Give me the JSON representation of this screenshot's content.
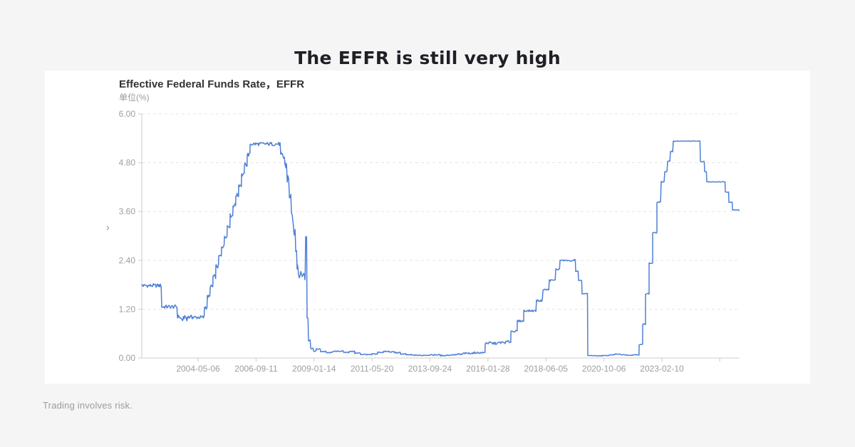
{
  "page": {
    "title": "The EFFR is still very high",
    "footer": "Trading involves risk.",
    "background_color": "#f5f5f6",
    "title_color": "#1e2025",
    "footer_color": "#9b9b9b"
  },
  "panel": {
    "collapse_icon": "›"
  },
  "chart_data": {
    "type": "line",
    "title": "Effective Federal Funds Rate，EFFR",
    "unit_label": "单位(%)",
    "grid": "dashed",
    "legend_position": "none",
    "line_color": "#4f80d5",
    "axis_color": "#cccccc",
    "grid_color": "#e5e5e5",
    "tick_label_color": "#9e9e9e",
    "ylim": [
      0,
      6
    ],
    "y_axis": {
      "labels": [
        "6.00",
        "4.80",
        "3.60",
        "2.40",
        "1.20",
        "0.00"
      ],
      "values": [
        6,
        4.8,
        3.6,
        2.4,
        1.2,
        0
      ]
    },
    "x_axis": {
      "labels": [
        "2004-05-06",
        "2006-09-11",
        "2009-01-14",
        "2011-05-20",
        "2013-09-24",
        "2016-01-28",
        "2018-06-05",
        "2020-10-06",
        "2023-02-10"
      ],
      "first_frac": 0.0943,
      "step_frac": 0.0971,
      "extra_tick_frac": 0.9679
    },
    "series": [
      {
        "name": "EFFR",
        "points": [
          [
            0.0012,
            1.78
          ],
          [
            0.0334,
            1.26
          ],
          [
            0.0597,
            1.02
          ],
          [
            0.0644,
            0.97
          ],
          [
            0.068,
            0.88
          ],
          [
            0.0692,
            1.0
          ],
          [
            0.0752,
            0.92
          ],
          [
            0.0764,
            1.01
          ],
          [
            0.0847,
            1.0
          ],
          [
            0.105,
            1.25
          ],
          [
            0.1098,
            1.5
          ],
          [
            0.1146,
            1.75
          ],
          [
            0.1193,
            2.0
          ],
          [
            0.1241,
            2.25
          ],
          [
            0.1289,
            2.5
          ],
          [
            0.1337,
            2.75
          ],
          [
            0.1384,
            3.0
          ],
          [
            0.1432,
            3.25
          ],
          [
            0.148,
            3.5
          ],
          [
            0.1528,
            3.75
          ],
          [
            0.1575,
            4.0
          ],
          [
            0.1623,
            4.25
          ],
          [
            0.1671,
            4.5
          ],
          [
            0.1718,
            4.75
          ],
          [
            0.1766,
            5.0
          ],
          [
            0.1814,
            5.26
          ],
          [
            0.2327,
            4.94
          ],
          [
            0.2399,
            4.75
          ],
          [
            0.2434,
            4.4
          ],
          [
            0.247,
            4.0
          ],
          [
            0.2506,
            3.45
          ],
          [
            0.2542,
            3.1
          ],
          [
            0.2578,
            2.7
          ],
          [
            0.2601,
            2.3
          ],
          [
            0.2625,
            2.05
          ],
          [
            0.2733,
            1.98
          ],
          [
            0.2745,
            2.98
          ],
          [
            0.2769,
            1.0
          ],
          [
            0.2792,
            0.45
          ],
          [
            0.2828,
            0.24
          ],
          [
            0.2876,
            0.17
          ],
          [
            0.2924,
            0.22
          ],
          [
            0.2995,
            0.16
          ],
          [
            0.3091,
            0.13
          ],
          [
            0.3186,
            0.16
          ],
          [
            0.3282,
            0.17
          ],
          [
            0.3377,
            0.14
          ],
          [
            0.3473,
            0.16
          ],
          [
            0.3568,
            0.12
          ],
          [
            0.3664,
            0.09
          ],
          [
            0.3759,
            0.08
          ],
          [
            0.3855,
            0.1
          ],
          [
            0.395,
            0.14
          ],
          [
            0.4046,
            0.16
          ],
          [
            0.4141,
            0.15
          ],
          [
            0.4237,
            0.13
          ],
          [
            0.4332,
            0.1
          ],
          [
            0.4427,
            0.08
          ],
          [
            0.4523,
            0.07
          ],
          [
            0.4618,
            0.065
          ],
          [
            0.4714,
            0.07
          ],
          [
            0.4809,
            0.075
          ],
          [
            0.4905,
            0.08
          ],
          [
            0.5,
            0.06
          ],
          [
            0.5095,
            0.07
          ],
          [
            0.5191,
            0.08
          ],
          [
            0.5286,
            0.09
          ],
          [
            0.5382,
            0.115
          ],
          [
            0.5477,
            0.12
          ],
          [
            0.5573,
            0.13
          ],
          [
            0.5668,
            0.13
          ],
          [
            0.5752,
            0.37
          ],
          [
            0.5859,
            0.36
          ],
          [
            0.5979,
            0.38
          ],
          [
            0.6098,
            0.4
          ],
          [
            0.6182,
            0.66
          ],
          [
            0.6289,
            0.91
          ],
          [
            0.6397,
            1.16
          ],
          [
            0.6611,
            1.41
          ],
          [
            0.6719,
            1.68
          ],
          [
            0.6826,
            1.91
          ],
          [
            0.6933,
            2.18
          ],
          [
            0.7005,
            2.4
          ],
          [
            0.7124,
            2.39
          ],
          [
            0.7243,
            2.42
          ],
          [
            0.7267,
            2.13
          ],
          [
            0.7315,
            1.9
          ],
          [
            0.7375,
            1.58
          ],
          [
            0.747,
            0.06
          ],
          [
            0.759,
            0.055
          ],
          [
            0.7709,
            0.06
          ],
          [
            0.7828,
            0.08
          ],
          [
            0.7924,
            0.095
          ],
          [
            0.8019,
            0.08
          ],
          [
            0.8115,
            0.07
          ],
          [
            0.8222,
            0.08
          ],
          [
            0.8329,
            0.33
          ],
          [
            0.8389,
            0.83
          ],
          [
            0.8437,
            1.58
          ],
          [
            0.8497,
            2.33
          ],
          [
            0.8556,
            3.08
          ],
          [
            0.8628,
            3.83
          ],
          [
            0.8699,
            4.33
          ],
          [
            0.8759,
            4.58
          ],
          [
            0.8807,
            4.83
          ],
          [
            0.8854,
            5.08
          ],
          [
            0.8902,
            5.33
          ],
          [
            0.9356,
            4.83
          ],
          [
            0.9427,
            4.58
          ],
          [
            0.9463,
            4.33
          ],
          [
            0.9773,
            4.08
          ],
          [
            0.9833,
            3.83
          ],
          [
            0.9893,
            3.64
          ],
          [
            1.0,
            3.62
          ]
        ]
      }
    ],
    "noise_segments": [
      [
        0.0,
        0.1,
        0.045
      ],
      [
        0.1,
        0.181,
        0.05
      ],
      [
        0.181,
        0.2327,
        0.045
      ],
      [
        0.2327,
        0.2625,
        0.13
      ],
      [
        0.2625,
        0.274,
        0.08
      ],
      [
        0.2769,
        0.2828,
        0.04
      ],
      [
        0.2828,
        0.526,
        0.013
      ],
      [
        0.526,
        0.5752,
        0.02
      ],
      [
        0.5752,
        0.6182,
        0.03
      ],
      [
        0.6182,
        0.7005,
        0.022
      ],
      [
        0.7005,
        0.7375,
        0.012
      ],
      [
        0.7375,
        0.7468,
        0.01
      ],
      [
        0.747,
        0.8329,
        0.006
      ],
      [
        0.8329,
        0.8902,
        0.012
      ],
      [
        0.8902,
        1.0,
        0.006
      ]
    ]
  }
}
